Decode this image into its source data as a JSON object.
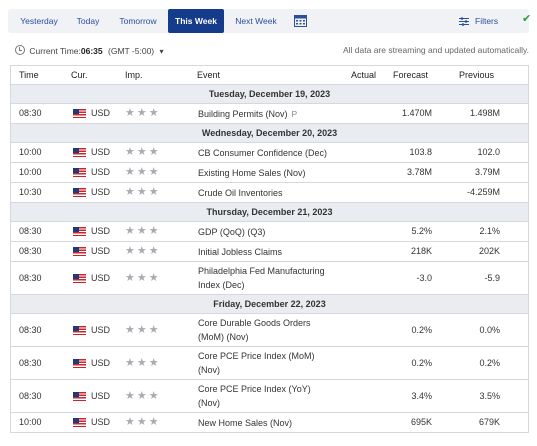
{
  "tabs": [
    {
      "label": "Yesterday",
      "active": false
    },
    {
      "label": "Today",
      "active": false
    },
    {
      "label": "Tomorrow",
      "active": false
    },
    {
      "label": "This Week",
      "active": true
    },
    {
      "label": "Next Week",
      "active": false
    }
  ],
  "filters_label": "Filters",
  "time_label": "Current Time:",
  "time_value": "06:35",
  "timezone": "(GMT -5:00)",
  "notice": "All data are streaming and updated automatically.",
  "columns": {
    "time": "Time",
    "currency": "Cur.",
    "importance": "Imp.",
    "event": "Event",
    "actual": "Actual",
    "forecast": "Forecast",
    "previous": "Previous"
  },
  "days": [
    {
      "label": "Tuesday, December 19, 2023",
      "events": [
        {
          "time": "08:30",
          "cur": "USD",
          "event": "Building Permits (Nov)",
          "tag": "P",
          "actual": "",
          "forecast": "1.470M",
          "previous": "1.498M"
        }
      ]
    },
    {
      "label": "Wednesday, December 20, 2023",
      "events": [
        {
          "time": "10:00",
          "cur": "USD",
          "event": "CB Consumer Confidence (Dec)",
          "actual": "",
          "forecast": "103.8",
          "previous": "102.0"
        },
        {
          "time": "10:00",
          "cur": "USD",
          "event": "Existing Home Sales (Nov)",
          "actual": "",
          "forecast": "3.78M",
          "previous": "3.79M"
        },
        {
          "time": "10:30",
          "cur": "USD",
          "event": "Crude Oil Inventories",
          "actual": "",
          "forecast": "",
          "previous": "-4.259M"
        }
      ]
    },
    {
      "label": "Thursday, December 21, 2023",
      "events": [
        {
          "time": "08:30",
          "cur": "USD",
          "event": "GDP (QoQ) (Q3)",
          "actual": "",
          "forecast": "5.2%",
          "previous": "2.1%"
        },
        {
          "time": "08:30",
          "cur": "USD",
          "event": "Initial Jobless Claims",
          "actual": "",
          "forecast": "218K",
          "previous": "202K"
        },
        {
          "time": "08:30",
          "cur": "USD",
          "event": "Philadelphia Fed Manufacturing",
          "event2": "Index (Dec)",
          "actual": "",
          "forecast": "-3.0",
          "previous": "-5.9"
        }
      ]
    },
    {
      "label": "Friday, December 22, 2023",
      "events": [
        {
          "time": "08:30",
          "cur": "USD",
          "event": "Core Durable Goods Orders",
          "event2": "(MoM) (Nov)",
          "actual": "",
          "forecast": "0.2%",
          "previous": "0.0%"
        },
        {
          "time": "08:30",
          "cur": "USD",
          "event": "Core PCE Price Index (MoM)",
          "event2": "(Nov)",
          "actual": "",
          "forecast": "0.2%",
          "previous": "0.2%"
        },
        {
          "time": "08:30",
          "cur": "USD",
          "event": "Core PCE Price Index (YoY)",
          "event2": "(Nov)",
          "actual": "",
          "forecast": "3.4%",
          "previous": "3.5%"
        },
        {
          "time": "10:00",
          "cur": "USD",
          "event": "New Home Sales (Nov)",
          "actual": "",
          "forecast": "695K",
          "previous": "679K"
        }
      ]
    }
  ]
}
